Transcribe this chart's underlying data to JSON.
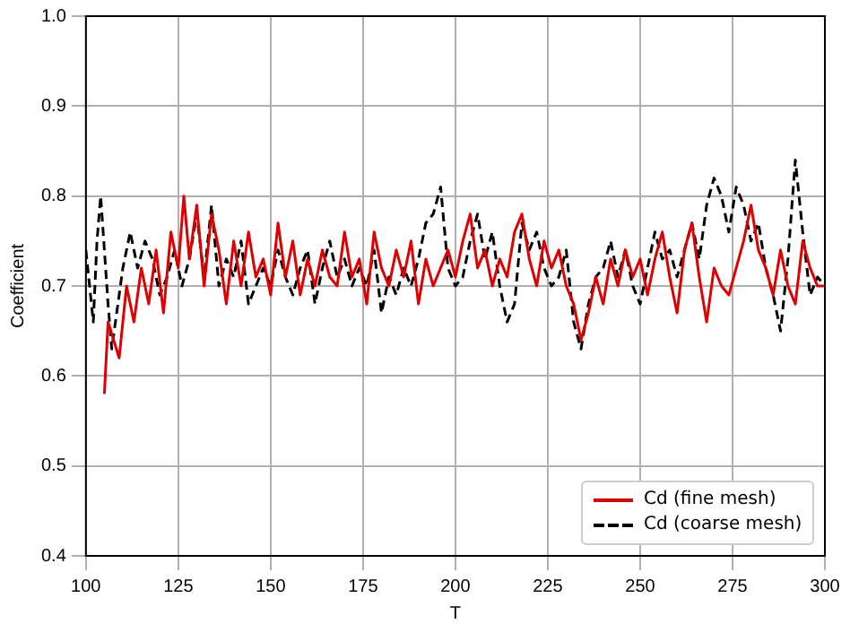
{
  "chart_data": {
    "type": "line",
    "xlabel": "T",
    "ylabel": "Coefficient",
    "xlim": [
      100,
      300
    ],
    "ylim": [
      0.4,
      1.0
    ],
    "xticks": [
      100,
      125,
      150,
      175,
      200,
      225,
      250,
      275,
      300
    ],
    "yticks": [
      0.4,
      0.5,
      0.6,
      0.7,
      0.8,
      0.9,
      {
        "value": 1,
        "label": "1.0"
      }
    ],
    "grid": true,
    "legend": "bottom right",
    "marker": "none",
    "series": [
      {
        "name": "Cd (fine mesh)",
        "color": "#e00000",
        "line_style": "solid",
        "x": [
          105,
          106,
          107.5,
          109,
          111,
          113,
          115,
          117,
          119,
          121,
          123,
          125,
          126.5,
          128,
          130,
          132,
          134,
          136,
          138,
          140,
          142,
          144,
          146,
          148,
          150,
          152,
          154,
          156,
          158,
          160,
          162,
          164,
          166,
          168,
          170,
          172,
          174,
          176,
          178,
          180,
          182,
          184,
          186,
          188,
          190,
          192,
          194,
          196,
          198,
          200,
          202,
          204,
          206,
          208,
          210,
          212,
          214,
          216,
          218,
          220,
          222,
          224,
          226,
          228,
          230,
          232,
          234,
          236,
          238,
          240,
          242,
          244,
          246,
          248,
          250,
          252,
          254,
          256,
          258,
          260,
          262,
          264,
          266,
          268,
          270,
          272,
          274,
          276,
          278,
          280,
          282,
          284,
          286,
          288,
          290,
          292,
          294,
          296,
          298,
          300
        ],
        "values": [
          0.58,
          0.66,
          0.64,
          0.62,
          0.7,
          0.66,
          0.72,
          0.68,
          0.74,
          0.67,
          0.76,
          0.72,
          0.8,
          0.73,
          0.79,
          0.7,
          0.78,
          0.74,
          0.68,
          0.75,
          0.7,
          0.76,
          0.71,
          0.73,
          0.69,
          0.77,
          0.71,
          0.75,
          0.69,
          0.73,
          0.7,
          0.74,
          0.71,
          0.7,
          0.76,
          0.71,
          0.73,
          0.68,
          0.76,
          0.72,
          0.7,
          0.74,
          0.71,
          0.75,
          0.68,
          0.73,
          0.7,
          0.72,
          0.74,
          0.71,
          0.75,
          0.78,
          0.72,
          0.74,
          0.7,
          0.73,
          0.71,
          0.76,
          0.78,
          0.73,
          0.7,
          0.75,
          0.72,
          0.74,
          0.7,
          0.68,
          0.64,
          0.67,
          0.71,
          0.68,
          0.73,
          0.7,
          0.74,
          0.71,
          0.73,
          0.69,
          0.73,
          0.76,
          0.71,
          0.67,
          0.74,
          0.77,
          0.71,
          0.66,
          0.72,
          0.7,
          0.69,
          0.72,
          0.75,
          0.79,
          0.74,
          0.72,
          0.69,
          0.74,
          0.7,
          0.68,
          0.75,
          0.72,
          0.7,
          0.7
        ]
      },
      {
        "name": "Cd (coarse mesh)",
        "color": "#000000",
        "line_style": "dashed",
        "x": [
          100,
          101,
          102,
          103,
          104,
          105,
          106,
          107,
          108,
          110,
          112,
          114,
          116,
          118,
          120,
          122,
          124,
          126,
          128,
          130,
          132,
          134,
          136,
          138,
          140,
          142,
          144,
          146,
          148,
          150,
          152,
          154,
          156,
          158,
          160,
          162,
          164,
          166,
          168,
          170,
          172,
          174,
          176,
          178,
          180,
          182,
          184,
          186,
          188,
          190,
          192,
          194,
          196,
          198,
          200,
          202,
          204,
          206,
          208,
          210,
          212,
          214,
          216,
          218,
          220,
          222,
          224,
          226,
          228,
          230,
          232,
          234,
          236,
          238,
          240,
          242,
          244,
          246,
          248,
          250,
          252,
          254,
          256,
          258,
          260,
          262,
          264,
          266,
          268,
          270,
          272,
          274,
          276,
          278,
          280,
          282,
          284,
          286,
          288,
          290,
          292,
          294,
          296,
          298,
          300
        ],
        "values": [
          0.74,
          0.7,
          0.66,
          0.75,
          0.8,
          0.74,
          0.68,
          0.63,
          0.66,
          0.72,
          0.76,
          0.72,
          0.75,
          0.73,
          0.69,
          0.71,
          0.74,
          0.7,
          0.73,
          0.78,
          0.71,
          0.79,
          0.7,
          0.73,
          0.71,
          0.75,
          0.68,
          0.7,
          0.72,
          0.7,
          0.74,
          0.71,
          0.69,
          0.72,
          0.74,
          0.68,
          0.72,
          0.75,
          0.71,
          0.73,
          0.7,
          0.72,
          0.7,
          0.74,
          0.67,
          0.71,
          0.69,
          0.72,
          0.7,
          0.73,
          0.77,
          0.78,
          0.81,
          0.72,
          0.7,
          0.71,
          0.75,
          0.78,
          0.73,
          0.76,
          0.7,
          0.66,
          0.68,
          0.77,
          0.74,
          0.76,
          0.72,
          0.7,
          0.71,
          0.74,
          0.66,
          0.63,
          0.68,
          0.71,
          0.72,
          0.75,
          0.71,
          0.74,
          0.7,
          0.68,
          0.72,
          0.76,
          0.73,
          0.74,
          0.71,
          0.74,
          0.77,
          0.73,
          0.79,
          0.82,
          0.8,
          0.76,
          0.81,
          0.79,
          0.75,
          0.77,
          0.72,
          0.69,
          0.65,
          0.73,
          0.84,
          0.76,
          0.69,
          0.71,
          0.7
        ]
      }
    ]
  }
}
